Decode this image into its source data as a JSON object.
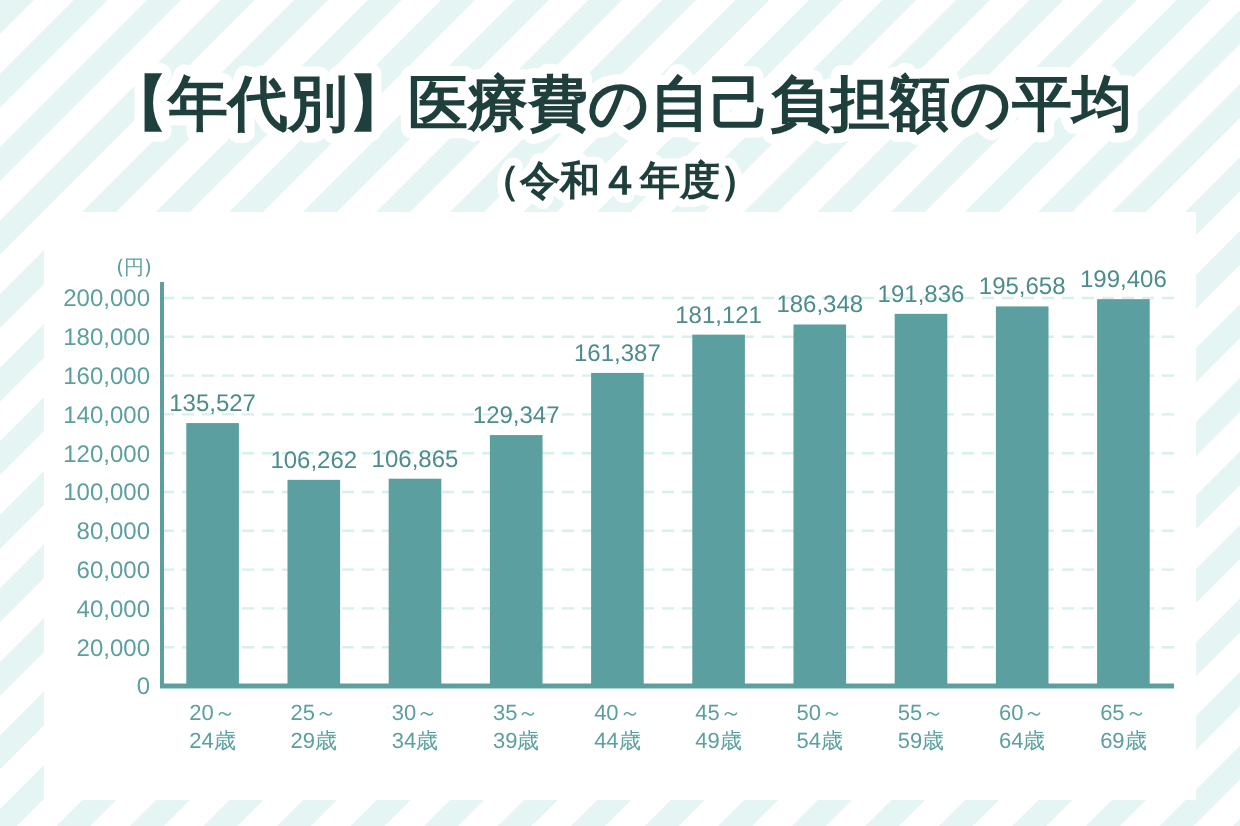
{
  "chart_data": {
    "type": "bar",
    "title": "【年代別】医療費の自己負担額の平均",
    "subtitle": "（令和４年度）",
    "ylabel": "(円)",
    "categories": [
      "20～\n24歳",
      "25～\n29歳",
      "30～\n34歳",
      "35～\n39歳",
      "40～\n44歳",
      "45～\n49歳",
      "50～\n54歳",
      "55～\n59歳",
      "60～\n64歳",
      "65～\n69歳"
    ],
    "values": [
      135527,
      106262,
      106865,
      129347,
      161387,
      181121,
      186348,
      191836,
      195658,
      199406
    ],
    "value_labels": [
      "135,527",
      "106,262",
      "106,865",
      "129,347",
      "161,387",
      "181,121",
      "186,348",
      "191,836",
      "195,658",
      "199,406"
    ],
    "color": "#5b9fa0",
    "ylim": [
      0,
      200000
    ],
    "yticks": [
      {
        "value": 0,
        "label": "0"
      },
      {
        "value": 20000,
        "label": "20,000"
      },
      {
        "value": 40000,
        "label": "40,000"
      },
      {
        "value": 60000,
        "label": "60,000"
      },
      {
        "value": 80000,
        "label": "80,000"
      },
      {
        "value": 100000,
        "label": "100,000"
      },
      {
        "value": 120000,
        "label": "120,000"
      },
      {
        "value": 140000,
        "label": "140,000"
      },
      {
        "value": 160000,
        "label": "160,000"
      },
      {
        "value": 180000,
        "label": "180,000"
      },
      {
        "value": 200000,
        "label": "200,000"
      }
    ],
    "grid": "y"
  }
}
